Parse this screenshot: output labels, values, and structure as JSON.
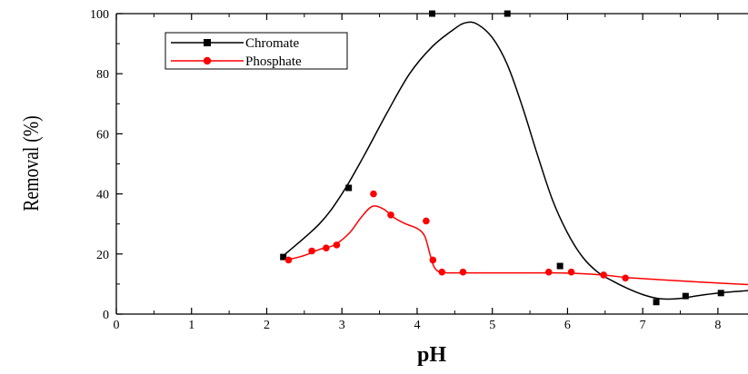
{
  "chart_data": {
    "type": "scatter",
    "title": "",
    "xlabel": "pH",
    "ylabel": "Removal (%)",
    "xlim": [
      0,
      8.4
    ],
    "ylim": [
      0,
      100
    ],
    "x_ticks": [
      0,
      1,
      2,
      3,
      4,
      5,
      6,
      7,
      8
    ],
    "y_ticks": [
      0,
      20,
      40,
      60,
      80,
      100
    ],
    "x_tick_labels": [
      "0",
      "1",
      "2",
      "3",
      "4",
      "5",
      "6",
      "7",
      "8"
    ],
    "y_tick_labels": [
      "0",
      "20",
      "40",
      "60",
      "80",
      "100"
    ],
    "grid": false,
    "legend_position": "top-left",
    "series": [
      {
        "name": "Chromate",
        "color": "#000000",
        "marker": "square",
        "x": [
          2.22,
          3.09,
          4.2,
          5.2,
          5.9,
          7.18,
          7.57,
          8.04
        ],
        "y": [
          19,
          42,
          100,
          100,
          16,
          4,
          6,
          7
        ],
        "curve": {
          "x": [
            2.2,
            2.7,
            3.0,
            3.3,
            3.6,
            3.9,
            4.2,
            4.5,
            4.65,
            4.8,
            5.0,
            5.2,
            5.4,
            5.6,
            5.8,
            6.0,
            6.2,
            6.4,
            6.6,
            6.8,
            7.0,
            7.2,
            7.35,
            7.5,
            7.7,
            8.0,
            8.4
          ],
          "y": [
            19,
            30,
            40,
            53,
            67,
            80,
            89,
            95,
            97,
            96.5,
            92,
            83,
            69,
            53,
            38,
            27,
            19,
            14,
            11,
            8.5,
            6.5,
            5.2,
            5,
            5.2,
            6,
            7,
            7.8
          ]
        }
      },
      {
        "name": "Phosphate",
        "color": "#ff0000",
        "marker": "circle",
        "x": [
          2.29,
          2.6,
          2.79,
          2.93,
          3.42,
          3.65,
          4.12,
          4.21,
          4.33,
          4.61,
          5.75,
          6.05,
          6.48,
          6.77
        ],
        "y": [
          18,
          21,
          22,
          23,
          40,
          33,
          31,
          18,
          14,
          14,
          14,
          14,
          13,
          12
        ],
        "curve": {
          "x": [
            2.25,
            2.35,
            2.5,
            2.7,
            2.9,
            3.1,
            3.25,
            3.4,
            3.55,
            3.7,
            3.85,
            4.0,
            4.1,
            4.17,
            4.22,
            4.28,
            4.35,
            4.5,
            5.0,
            5.75,
            6.05,
            6.48,
            6.77,
            7.2,
            7.8,
            8.4
          ],
          "y": [
            18,
            18.5,
            19.5,
            21.5,
            23,
            27,
            32,
            35.8,
            35,
            32,
            30,
            28.5,
            26,
            20,
            16,
            14.2,
            13.8,
            13.7,
            13.7,
            13.7,
            13.6,
            13,
            12.2,
            11.5,
            10.6,
            9.8
          ]
        }
      }
    ]
  }
}
